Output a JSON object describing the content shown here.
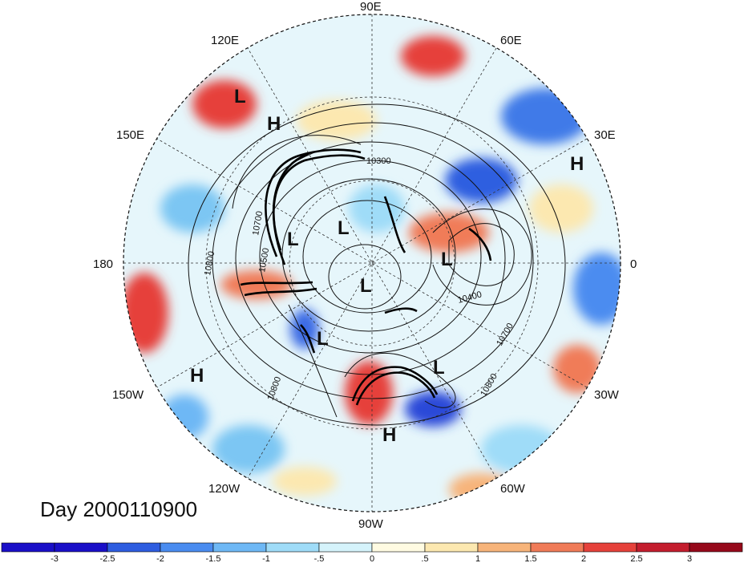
{
  "title": "Day 2000110900",
  "longitude_labels": [
    "90E",
    "60E",
    "30E",
    "0",
    "30W",
    "60W",
    "90W",
    "120W",
    "150W",
    "180",
    "150E",
    "120E"
  ],
  "contour_labels": [
    "10300",
    "10700",
    "10500",
    "10800",
    "10400",
    "10700",
    "10800",
    "10800"
  ],
  "pressure_centers": [
    "L",
    "H",
    "H",
    "L",
    "L",
    "L",
    "L",
    "L",
    "H",
    "L",
    "H"
  ],
  "colorbar": {
    "tick_labels": [
      "-3",
      "-2.5",
      "-2",
      "-1.5",
      "-1",
      "-.5",
      "0",
      ".5",
      "1",
      "1.5",
      "2",
      "2.5",
      "3"
    ],
    "colors": [
      "#1a0fc8",
      "#2e5de0",
      "#4a8cf0",
      "#6eb8f5",
      "#9fdcf8",
      "#d5f3fb",
      "#fffbe2",
      "#fce8b0",
      "#f7b47a",
      "#f07b58",
      "#e6413b",
      "#c41d2e",
      "#96091b"
    ]
  }
}
